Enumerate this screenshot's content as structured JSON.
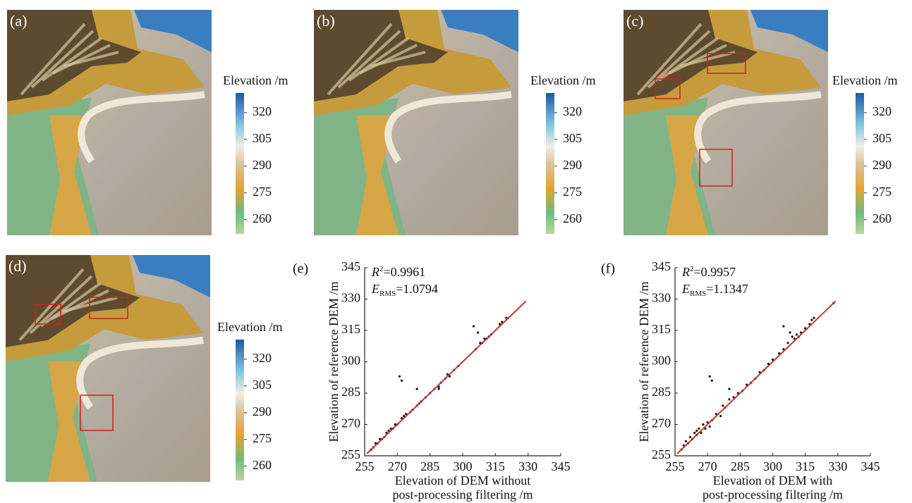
{
  "chart_data": [
    {
      "type": "map",
      "panel": "(a)",
      "colorbar_label": "Elevation /m",
      "clim": [
        252,
        331
      ],
      "cticks": [
        260,
        275,
        290,
        305,
        320
      ]
    },
    {
      "type": "map",
      "panel": "(b)",
      "colorbar_label": "Elevation /m",
      "clim": [
        252,
        331
      ],
      "cticks": [
        260,
        275,
        290,
        305,
        320
      ]
    },
    {
      "type": "map",
      "panel": "(c)",
      "colorbar_label": "Elevation /m",
      "clim": [
        252,
        331
      ],
      "cticks": [
        260,
        275,
        290,
        305,
        320
      ]
    },
    {
      "type": "map",
      "panel": "(d)",
      "colorbar_label": "Elevation /m",
      "clim": [
        252,
        331
      ],
      "cticks": [
        260,
        275,
        290,
        305,
        320
      ]
    },
    {
      "type": "scatter",
      "panel": "(e)",
      "annotations": [
        {
          "symbol": "R",
          "sup": "2",
          "text": "=0.9961"
        },
        {
          "symbol": "E",
          "sub": "RMS",
          "text": "=1.0794"
        }
      ],
      "xlabel": [
        "Elevation of DEM without",
        "post-processing filtering /m"
      ],
      "ylabel": "Elevation of reference DEM /m",
      "xlim": [
        255,
        345
      ],
      "ylim": [
        255,
        345
      ],
      "xticks": [
        255,
        270,
        285,
        300,
        315,
        330,
        345
      ],
      "yticks": [
        255,
        270,
        285,
        300,
        315,
        330,
        345
      ],
      "series": [
        {
          "type": "scatter",
          "color": "#111111",
          "x": [
            258,
            259,
            260,
            261,
            262,
            263,
            264,
            265,
            266,
            267,
            268,
            269,
            270,
            272,
            273,
            274,
            276,
            277,
            279,
            280,
            281,
            283,
            285,
            287,
            289,
            290,
            292,
            293,
            294,
            296,
            298,
            306,
            308,
            309,
            310,
            311,
            312,
            313,
            317,
            318,
            320,
            271,
            272,
            279,
            305,
            307,
            289
          ],
          "values": [
            258,
            259,
            261,
            261,
            263,
            263,
            264,
            266,
            267,
            268,
            268,
            270,
            270,
            273,
            274,
            275,
            276,
            277,
            279,
            280,
            281,
            283,
            285,
            287,
            288,
            290,
            292,
            294,
            293,
            296,
            298,
            306,
            309,
            309,
            311,
            311,
            312,
            313,
            318,
            319,
            321,
            293,
            291,
            287,
            317,
            314,
            287
          ]
        },
        {
          "type": "line",
          "color": "#c0392b",
          "x": [
            256,
            329
          ],
          "values": [
            256,
            329
          ]
        }
      ]
    },
    {
      "type": "scatter",
      "panel": "(f)",
      "annotations": [
        {
          "symbol": "R",
          "sup": "2",
          "text": "=0.9957"
        },
        {
          "symbol": "E",
          "sub": "RMS",
          "text": "=1.1347"
        }
      ],
      "xlabel": [
        "Elevation of DEM with",
        "post-processing filtering /m"
      ],
      "ylabel": "Elevation of reference DEM /m",
      "xlim": [
        255,
        345
      ],
      "ylim": [
        255,
        345
      ],
      "xticks": [
        255,
        270,
        285,
        300,
        315,
        330,
        345
      ],
      "yticks": [
        255,
        270,
        285,
        300,
        315,
        330,
        345
      ],
      "series": [
        {
          "type": "scatter",
          "color": "#111111",
          "x": [
            258,
            259,
            260,
            261,
            262,
            263,
            264,
            265,
            266,
            267,
            268,
            269,
            270,
            271,
            272,
            274,
            276,
            277,
            278,
            280,
            282,
            284,
            286,
            288,
            290,
            292,
            294,
            296,
            298,
            300,
            303,
            305,
            307,
            309,
            310,
            311,
            312,
            313,
            315,
            317,
            318,
            319,
            328,
            271,
            272,
            280,
            305,
            308,
            265,
            268
          ],
          "values": [
            258,
            260,
            262,
            261,
            264,
            263,
            266,
            265,
            268,
            266,
            270,
            268,
            271,
            269,
            272,
            275,
            274,
            279,
            278,
            282,
            283,
            285,
            286,
            289,
            290,
            292,
            295,
            296,
            299,
            301,
            304,
            306,
            309,
            312,
            311,
            313,
            312,
            314,
            316,
            318,
            320,
            321,
            328,
            293,
            291,
            287,
            317,
            314,
            267,
            270
          ]
        },
        {
          "type": "line",
          "color": "#c0392b",
          "x": [
            256,
            329
          ],
          "values": [
            256,
            329
          ]
        }
      ]
    }
  ]
}
